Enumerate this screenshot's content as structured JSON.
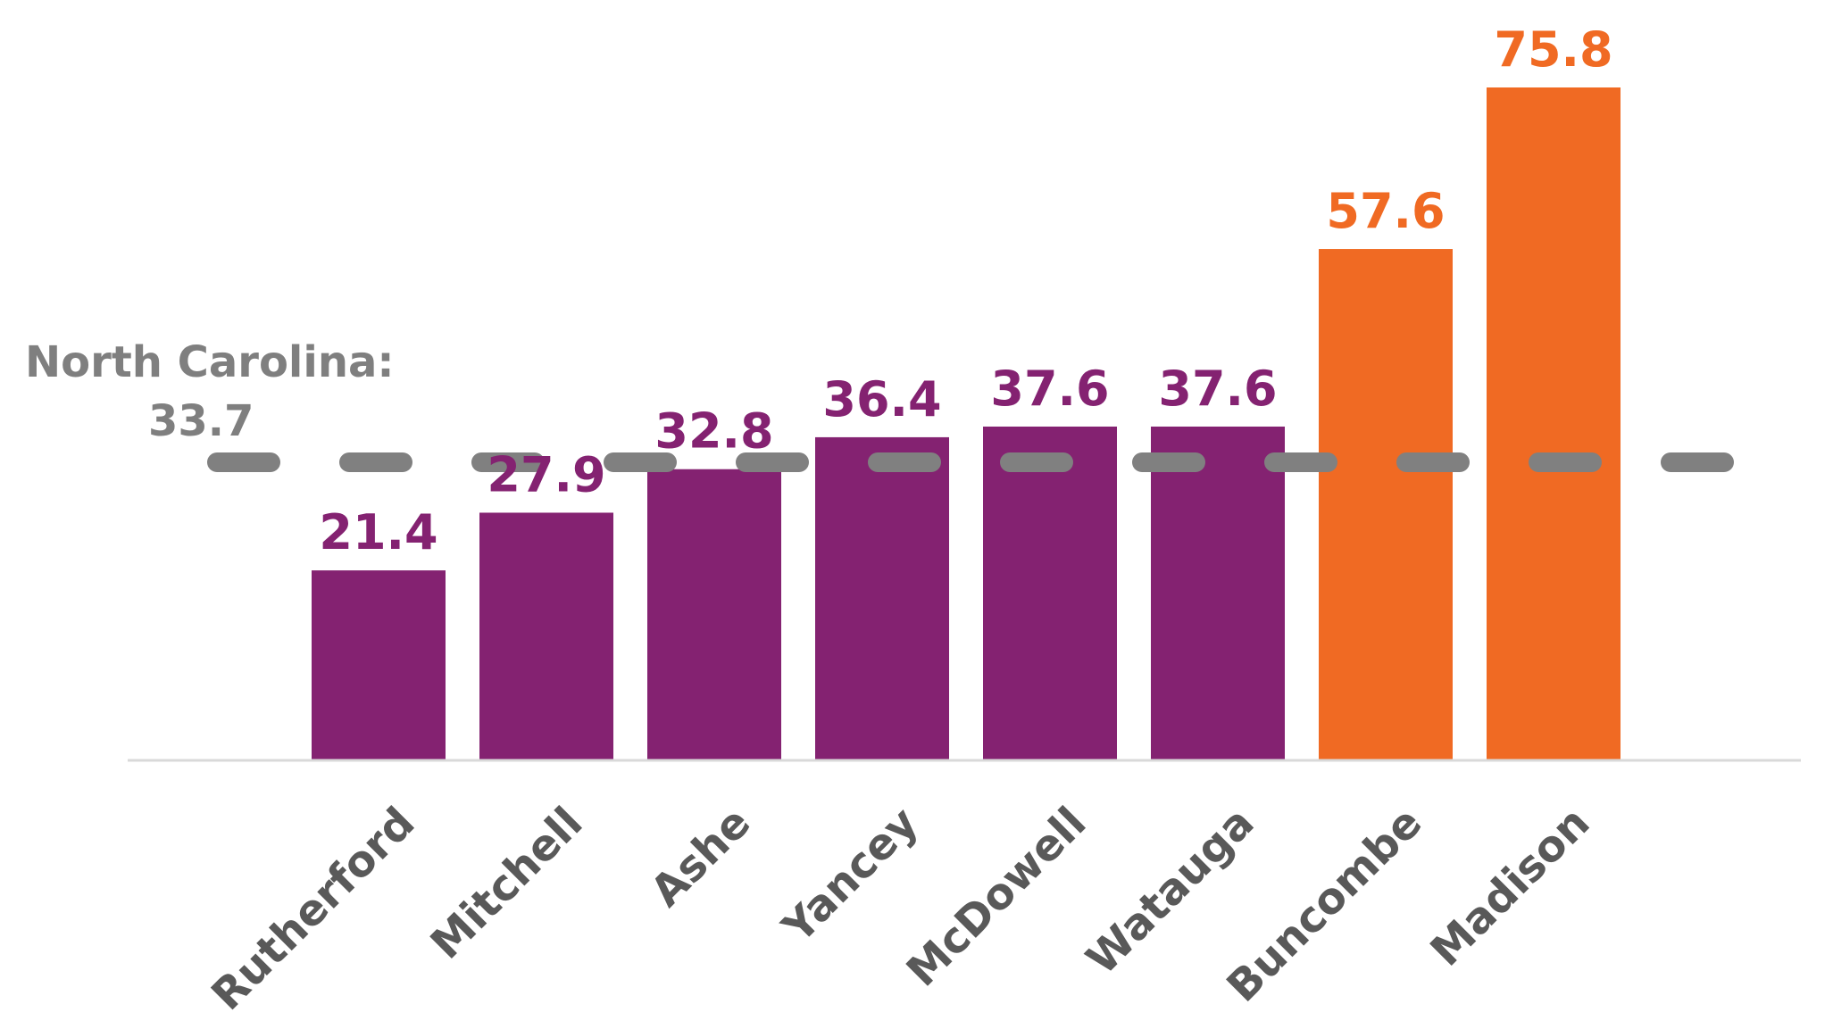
{
  "chart_data": {
    "type": "bar",
    "categories": [
      "Rutherford",
      "Mitchell",
      "Ashe",
      "Yancey",
      "McDowell",
      "Watauga",
      "Buncombe",
      "Madison"
    ],
    "values": [
      21.4,
      27.9,
      32.8,
      36.4,
      37.6,
      37.6,
      57.6,
      75.8
    ],
    "value_labels": [
      "21.4",
      "27.9",
      "32.8",
      "36.4",
      "37.6",
      "37.6",
      "57.6",
      "75.8"
    ],
    "highlight": [
      false,
      false,
      false,
      false,
      false,
      false,
      true,
      true
    ],
    "colors": {
      "default": "#842271",
      "highlight": "#f06a23",
      "reference": "#808080",
      "axis": "#d9d9d9",
      "category_text": "#595959"
    },
    "reference_line": {
      "label": "North Carolina:",
      "value_label": "33.7",
      "value": 33.7
    },
    "ylim": [
      0,
      80
    ],
    "grid": false,
    "legend": "none",
    "title": "",
    "xlabel": "",
    "ylabel": ""
  }
}
